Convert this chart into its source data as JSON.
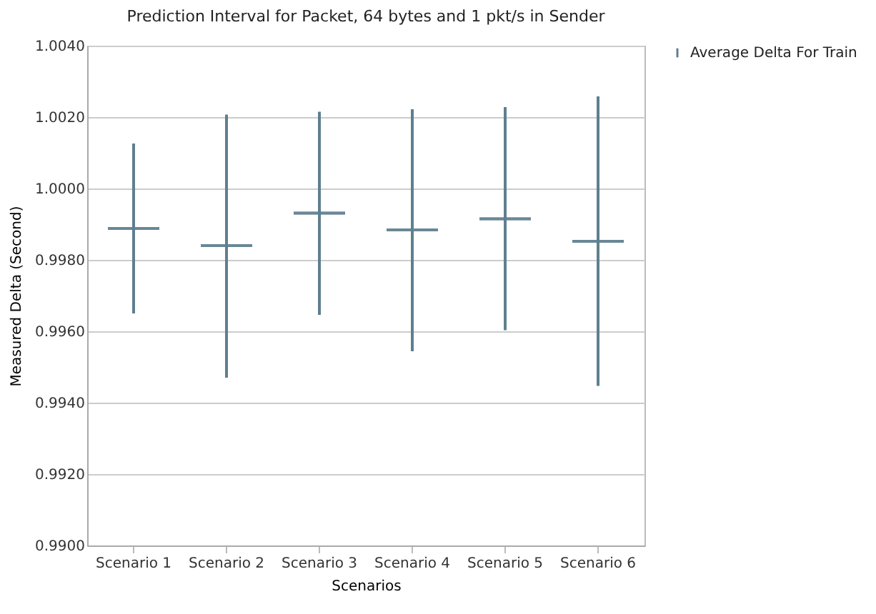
{
  "chart_data": {
    "type": "box",
    "title": "Prediction Interval for Packet, 64 bytes and 1 pkt/s in Sender",
    "xlabel": "Scenarios",
    "ylabel": "Measured Delta  (Second)",
    "categories": [
      "Scenario 1",
      "Scenario 2",
      "Scenario 3",
      "Scenario 4",
      "Scenario 5",
      "Scenario 6"
    ],
    "series": [
      {
        "name": "Average Delta For Train",
        "color": "#5f7f8f",
        "boxes": [
          {
            "low": 0.9965,
            "q1": 0.99888,
            "median": 0.99888,
            "q3": 0.99888,
            "high": 1.00126
          },
          {
            "low": 0.9947,
            "q1": 0.9984,
            "median": 0.9984,
            "q3": 0.9984,
            "high": 1.00207
          },
          {
            "low": 0.99646,
            "q1": 0.99931,
            "median": 0.99931,
            "q3": 0.99931,
            "high": 1.00215
          },
          {
            "low": 0.99544,
            "q1": 0.99884,
            "median": 0.99884,
            "q3": 0.99884,
            "high": 1.00222
          },
          {
            "low": 0.99603,
            "q1": 0.99915,
            "median": 0.99915,
            "q3": 0.99915,
            "high": 1.00228
          },
          {
            "low": 0.99447,
            "q1": 0.99852,
            "median": 0.99852,
            "q3": 0.99852,
            "high": 1.00258
          }
        ]
      }
    ],
    "ylim": [
      0.99,
      1.004
    ],
    "yticks": [
      {
        "value": 0.99,
        "label": "0.9900"
      },
      {
        "value": 0.992,
        "label": "0.9920"
      },
      {
        "value": 0.994,
        "label": "0.9940"
      },
      {
        "value": 0.996,
        "label": "0.9960"
      },
      {
        "value": 0.998,
        "label": "0.9980"
      },
      {
        "value": 1.0,
        "label": "1.0000"
      },
      {
        "value": 1.002,
        "label": "1.0020"
      },
      {
        "value": 1.004,
        "label": "1.0040"
      }
    ],
    "grid": "y",
    "legend": "right"
  }
}
